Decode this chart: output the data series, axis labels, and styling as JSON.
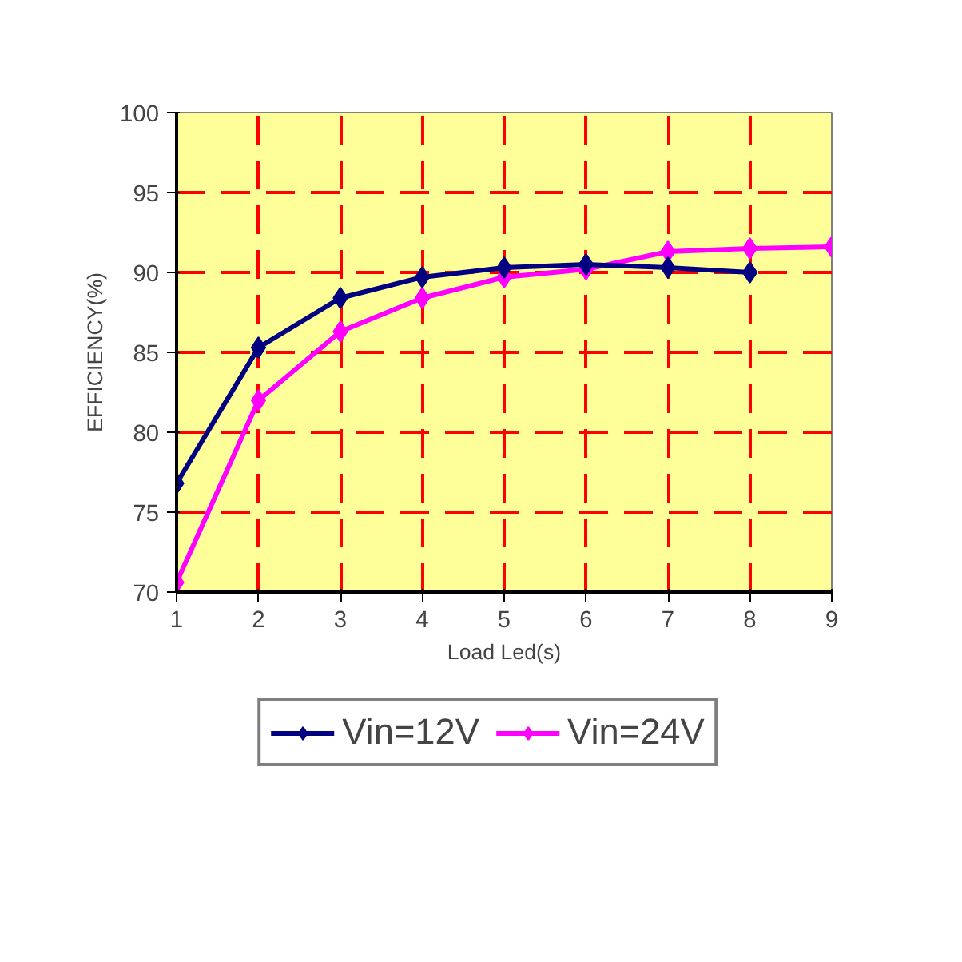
{
  "chart_data": {
    "type": "line",
    "xlabel": "Load Led(s)",
    "ylabel": "EFFICIENCY(%)",
    "x": [
      1,
      2,
      3,
      4,
      5,
      6,
      7,
      8,
      9
    ],
    "xlim": [
      1,
      9
    ],
    "xticks": [
      1,
      2,
      3,
      4,
      5,
      6,
      7,
      8,
      9
    ],
    "ylim": [
      70,
      100
    ],
    "yticks": [
      70,
      75,
      80,
      85,
      90,
      95,
      100
    ],
    "grid": true,
    "legend": "bottom",
    "marker": "diamond",
    "line_style": "solid",
    "series": [
      {
        "name": "Vin=12V",
        "color": "#000080",
        "values": [
          76.8,
          85.3,
          88.4,
          89.7,
          90.3,
          90.5,
          90.3,
          90.0,
          null
        ]
      },
      {
        "name": "Vin=24V",
        "color": "#ff00ff",
        "values": [
          70.6,
          82.0,
          86.3,
          88.4,
          89.7,
          90.2,
          91.3,
          91.5,
          91.6
        ]
      }
    ]
  }
}
